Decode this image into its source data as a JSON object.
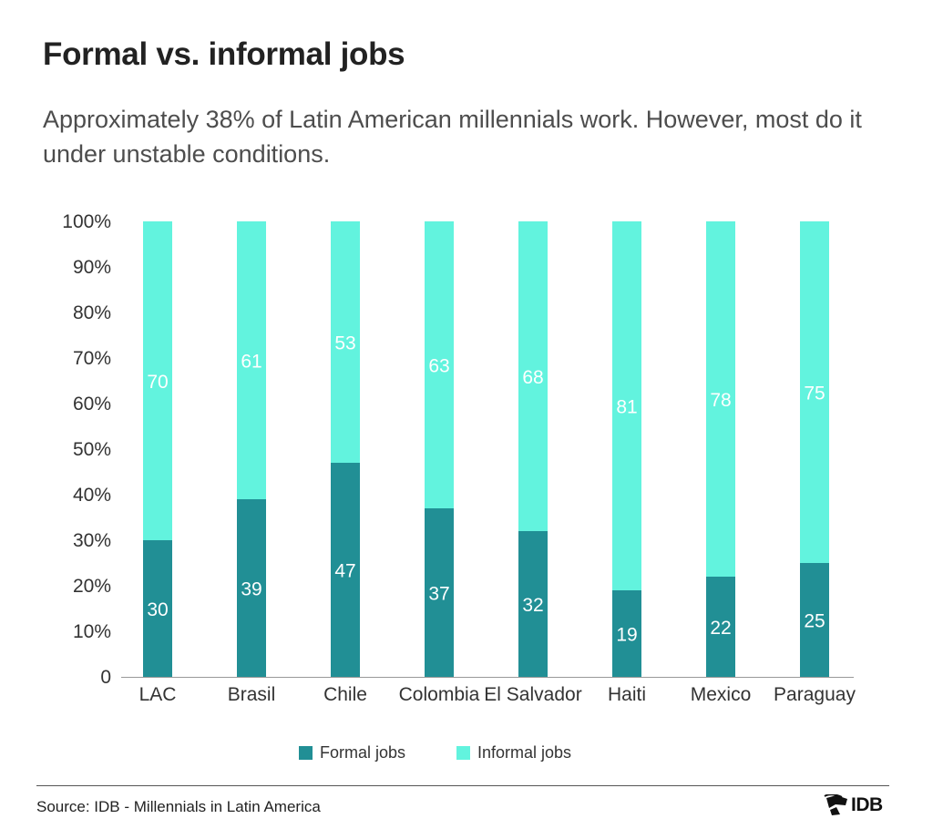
{
  "header": {
    "title": "Formal vs. informal jobs",
    "subtitle": "Approximately 38% of Latin American millennials work. However, most do it under unstable conditions."
  },
  "colors": {
    "formal": "#218f95",
    "informal": "#62f3de",
    "text": "#333333"
  },
  "chart_data": {
    "type": "bar",
    "stacked": true,
    "categories": [
      "LAC",
      "Brasil",
      "Chile",
      "Colombia",
      "El Salvador",
      "Haiti",
      "Mexico",
      "Paraguay"
    ],
    "series": [
      {
        "name": "Formal jobs",
        "values": [
          30,
          39,
          47,
          37,
          32,
          19,
          22,
          25
        ]
      },
      {
        "name": "Informal jobs",
        "values": [
          70,
          61,
          53,
          63,
          68,
          81,
          78,
          75
        ]
      }
    ],
    "ylim": [
      0,
      100
    ],
    "yticks": [
      "0",
      "10%",
      "20%",
      "30%",
      "40%",
      "50%",
      "60%",
      "70%",
      "80%",
      "90%",
      "100%"
    ],
    "grid": false,
    "legend_position": "bottom"
  },
  "legend": {
    "formal_label": "Formal jobs",
    "informal_label": "Informal jobs"
  },
  "footer": {
    "source": "Source: IDB - Millennials in Latin America",
    "logo_text": "IDB"
  }
}
